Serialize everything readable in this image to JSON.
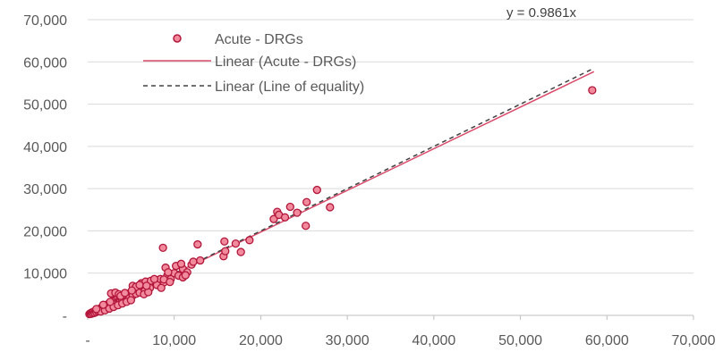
{
  "chart_data": {
    "type": "scatter",
    "title": "",
    "xlabel": "",
    "ylabel": "",
    "xlim": [
      0,
      70000
    ],
    "ylim": [
      0,
      70000
    ],
    "x_ticks": [
      0,
      10000,
      20000,
      30000,
      40000,
      50000,
      60000,
      70000
    ],
    "y_ticks": [
      0,
      10000,
      20000,
      30000,
      40000,
      50000,
      60000,
      70000
    ],
    "x_tick_labels": [
      "-",
      "10,000",
      "20,000",
      "30,000",
      "40,000",
      "50,000",
      "60,000",
      "70,000"
    ],
    "y_tick_labels": [
      "-",
      "10,000",
      "20,000",
      "30,000",
      "40,000",
      "50,000",
      "60,000",
      "70,000"
    ],
    "grid": "horizontal",
    "legend_position": "top-left",
    "legend": [
      {
        "label": "Acute - DRGs",
        "kind": "marker"
      },
      {
        "label": "Linear (Acute - DRGs)",
        "kind": "solid-line"
      },
      {
        "label": "Linear (Line of equality)",
        "kind": "dashed-line"
      }
    ],
    "trendline_equation": "y = 0.9861x",
    "trendline_slope": 0.9861,
    "equality_slope": 1.0,
    "line_x_range": [
      0,
      58500
    ],
    "colors": {
      "marker_fill": "#f08a9c",
      "marker_stroke": "#b3163a",
      "trendline": "#d94a6a",
      "equality": "#404040",
      "grid": "#d9d9d9",
      "axis": "#bfbfbf"
    },
    "series": [
      {
        "name": "Acute - DRGs",
        "points": [
          [
            200,
            300
          ],
          [
            300,
            500
          ],
          [
            400,
            350
          ],
          [
            500,
            700
          ],
          [
            600,
            500
          ],
          [
            700,
            900
          ],
          [
            800,
            600
          ],
          [
            900,
            1100
          ],
          [
            1000,
            800
          ],
          [
            1100,
            1300
          ],
          [
            1200,
            1000
          ],
          [
            1300,
            1500
          ],
          [
            1400,
            1200
          ],
          [
            1500,
            1700
          ],
          [
            1600,
            1400
          ],
          [
            1700,
            1800
          ],
          [
            1800,
            1600
          ],
          [
            1900,
            2100
          ],
          [
            2000,
            1700
          ],
          [
            2100,
            2300
          ],
          [
            2200,
            1900
          ],
          [
            2300,
            2600
          ],
          [
            2400,
            2100
          ],
          [
            2500,
            2800
          ],
          [
            2600,
            2300
          ],
          [
            2700,
            3000
          ],
          [
            2800,
            2500
          ],
          [
            2900,
            3400
          ],
          [
            3000,
            2700
          ],
          [
            3100,
            3600
          ],
          [
            3200,
            2900
          ],
          [
            3300,
            3800
          ],
          [
            3400,
            3100
          ],
          [
            3500,
            4100
          ],
          [
            3600,
            3300
          ],
          [
            3700,
            3700
          ],
          [
            3800,
            3500
          ],
          [
            3900,
            4200
          ],
          [
            4000,
            3600
          ],
          [
            4200,
            4500
          ],
          [
            4400,
            3900
          ],
          [
            4600,
            5000
          ],
          [
            4800,
            4300
          ],
          [
            5000,
            5500
          ],
          [
            5200,
            4700
          ],
          [
            5400,
            6000
          ],
          [
            5600,
            5100
          ],
          [
            5800,
            6200
          ],
          [
            6000,
            5400
          ],
          [
            6300,
            6800
          ],
          [
            6600,
            5800
          ],
          [
            6900,
            7400
          ],
          [
            7200,
            6500
          ],
          [
            7600,
            8000
          ],
          [
            8000,
            7200
          ],
          [
            8400,
            8600
          ],
          [
            8800,
            7800
          ],
          [
            9200,
            9400
          ],
          [
            9600,
            8600
          ],
          [
            10000,
            10000
          ],
          [
            10500,
            9400
          ],
          [
            11000,
            11000
          ],
          [
            11500,
            10200
          ],
          [
            12000,
            12000
          ],
          [
            2700,
            5200
          ],
          [
            3200,
            5400
          ],
          [
            3600,
            5000
          ],
          [
            4100,
            4800
          ],
          [
            5200,
            7000
          ],
          [
            5600,
            6800
          ],
          [
            6200,
            7600
          ],
          [
            6700,
            8000
          ],
          [
            7300,
            8200
          ],
          [
            8800,
            8500
          ],
          [
            9000,
            11300
          ],
          [
            10200,
            11700
          ],
          [
            10800,
            12200
          ],
          [
            12200,
            12700
          ],
          [
            13000,
            13000
          ],
          [
            8700,
            16000
          ],
          [
            12700,
            16800
          ],
          [
            15700,
            14000
          ],
          [
            15900,
            15200
          ],
          [
            15800,
            17500
          ],
          [
            17100,
            17000
          ],
          [
            17700,
            15000
          ],
          [
            18700,
            17800
          ],
          [
            21500,
            22800
          ],
          [
            21900,
            24500
          ],
          [
            22100,
            23800
          ],
          [
            22800,
            23200
          ],
          [
            23400,
            25700
          ],
          [
            24200,
            24300
          ],
          [
            25200,
            21200
          ],
          [
            25300,
            26800
          ],
          [
            26500,
            29700
          ],
          [
            28000,
            25600
          ],
          [
            58300,
            53300
          ],
          [
            1500,
            900
          ],
          [
            2000,
            1200
          ],
          [
            2500,
            1600
          ],
          [
            3000,
            2000
          ],
          [
            3500,
            2400
          ],
          [
            4000,
            2800
          ],
          [
            4500,
            3200
          ],
          [
            5000,
            3600
          ],
          [
            6500,
            5000
          ],
          [
            7000,
            5500
          ],
          [
            8500,
            6500
          ],
          [
            9500,
            7900
          ],
          [
            11000,
            9000
          ],
          [
            11300,
            9500
          ],
          [
            1000,
            1500
          ],
          [
            1800,
            2500
          ],
          [
            2600,
            3200
          ],
          [
            3800,
            4600
          ],
          [
            4300,
            5300
          ],
          [
            5100,
            5900
          ],
          [
            6000,
            7200
          ],
          [
            6800,
            7000
          ],
          [
            7700,
            8600
          ],
          [
            9300,
            10200
          ]
        ]
      }
    ]
  }
}
